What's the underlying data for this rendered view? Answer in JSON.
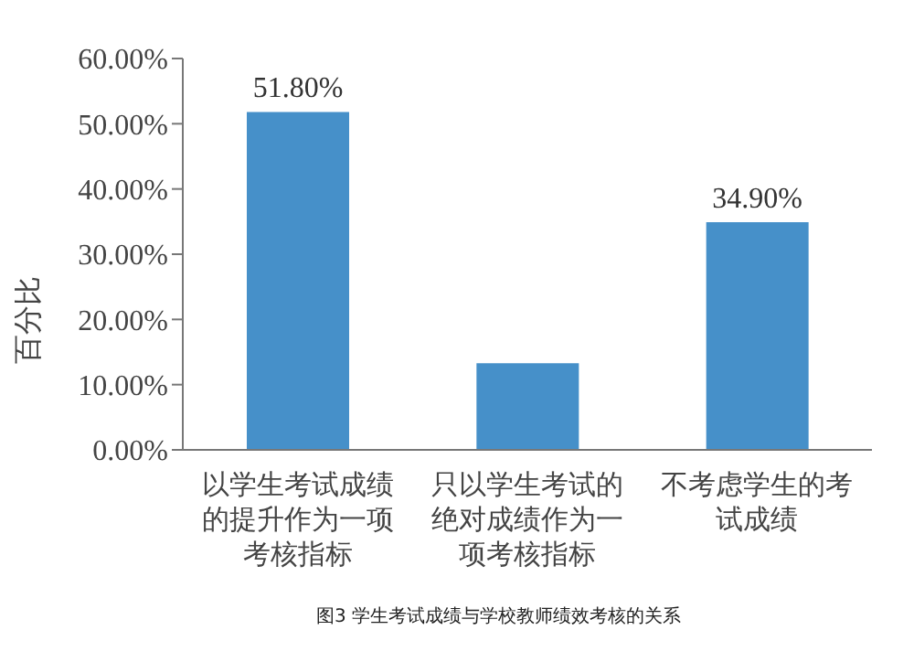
{
  "chart_data": {
    "type": "bar",
    "ylabel": "百分比",
    "categories": [
      "以学生考试成绩的提升作为一项考核指标",
      "只以学生考试的绝对成绩作为一项考核指标",
      "不考虑学生的考试成绩"
    ],
    "values": [
      51.8,
      13.3,
      34.9
    ],
    "color": "#4690c9",
    "value_labels": [
      "51.80%",
      null,
      "34.90%"
    ],
    "ylim": [
      0,
      60
    ],
    "yticks": [
      {
        "value": 0,
        "label": "0.00%"
      },
      {
        "value": 10,
        "label": "10.00%"
      },
      {
        "value": 20,
        "label": "20.00%"
      },
      {
        "value": 30,
        "label": "30.00%"
      },
      {
        "value": 40,
        "label": "40.00%"
      },
      {
        "value": 50,
        "label": "50.00%"
      },
      {
        "value": 60,
        "label": "60.00%"
      }
    ],
    "grid": false,
    "legend": false,
    "annotations": [
      "图3 学生考试成绩与学校教师绩效考核的关系"
    ]
  }
}
